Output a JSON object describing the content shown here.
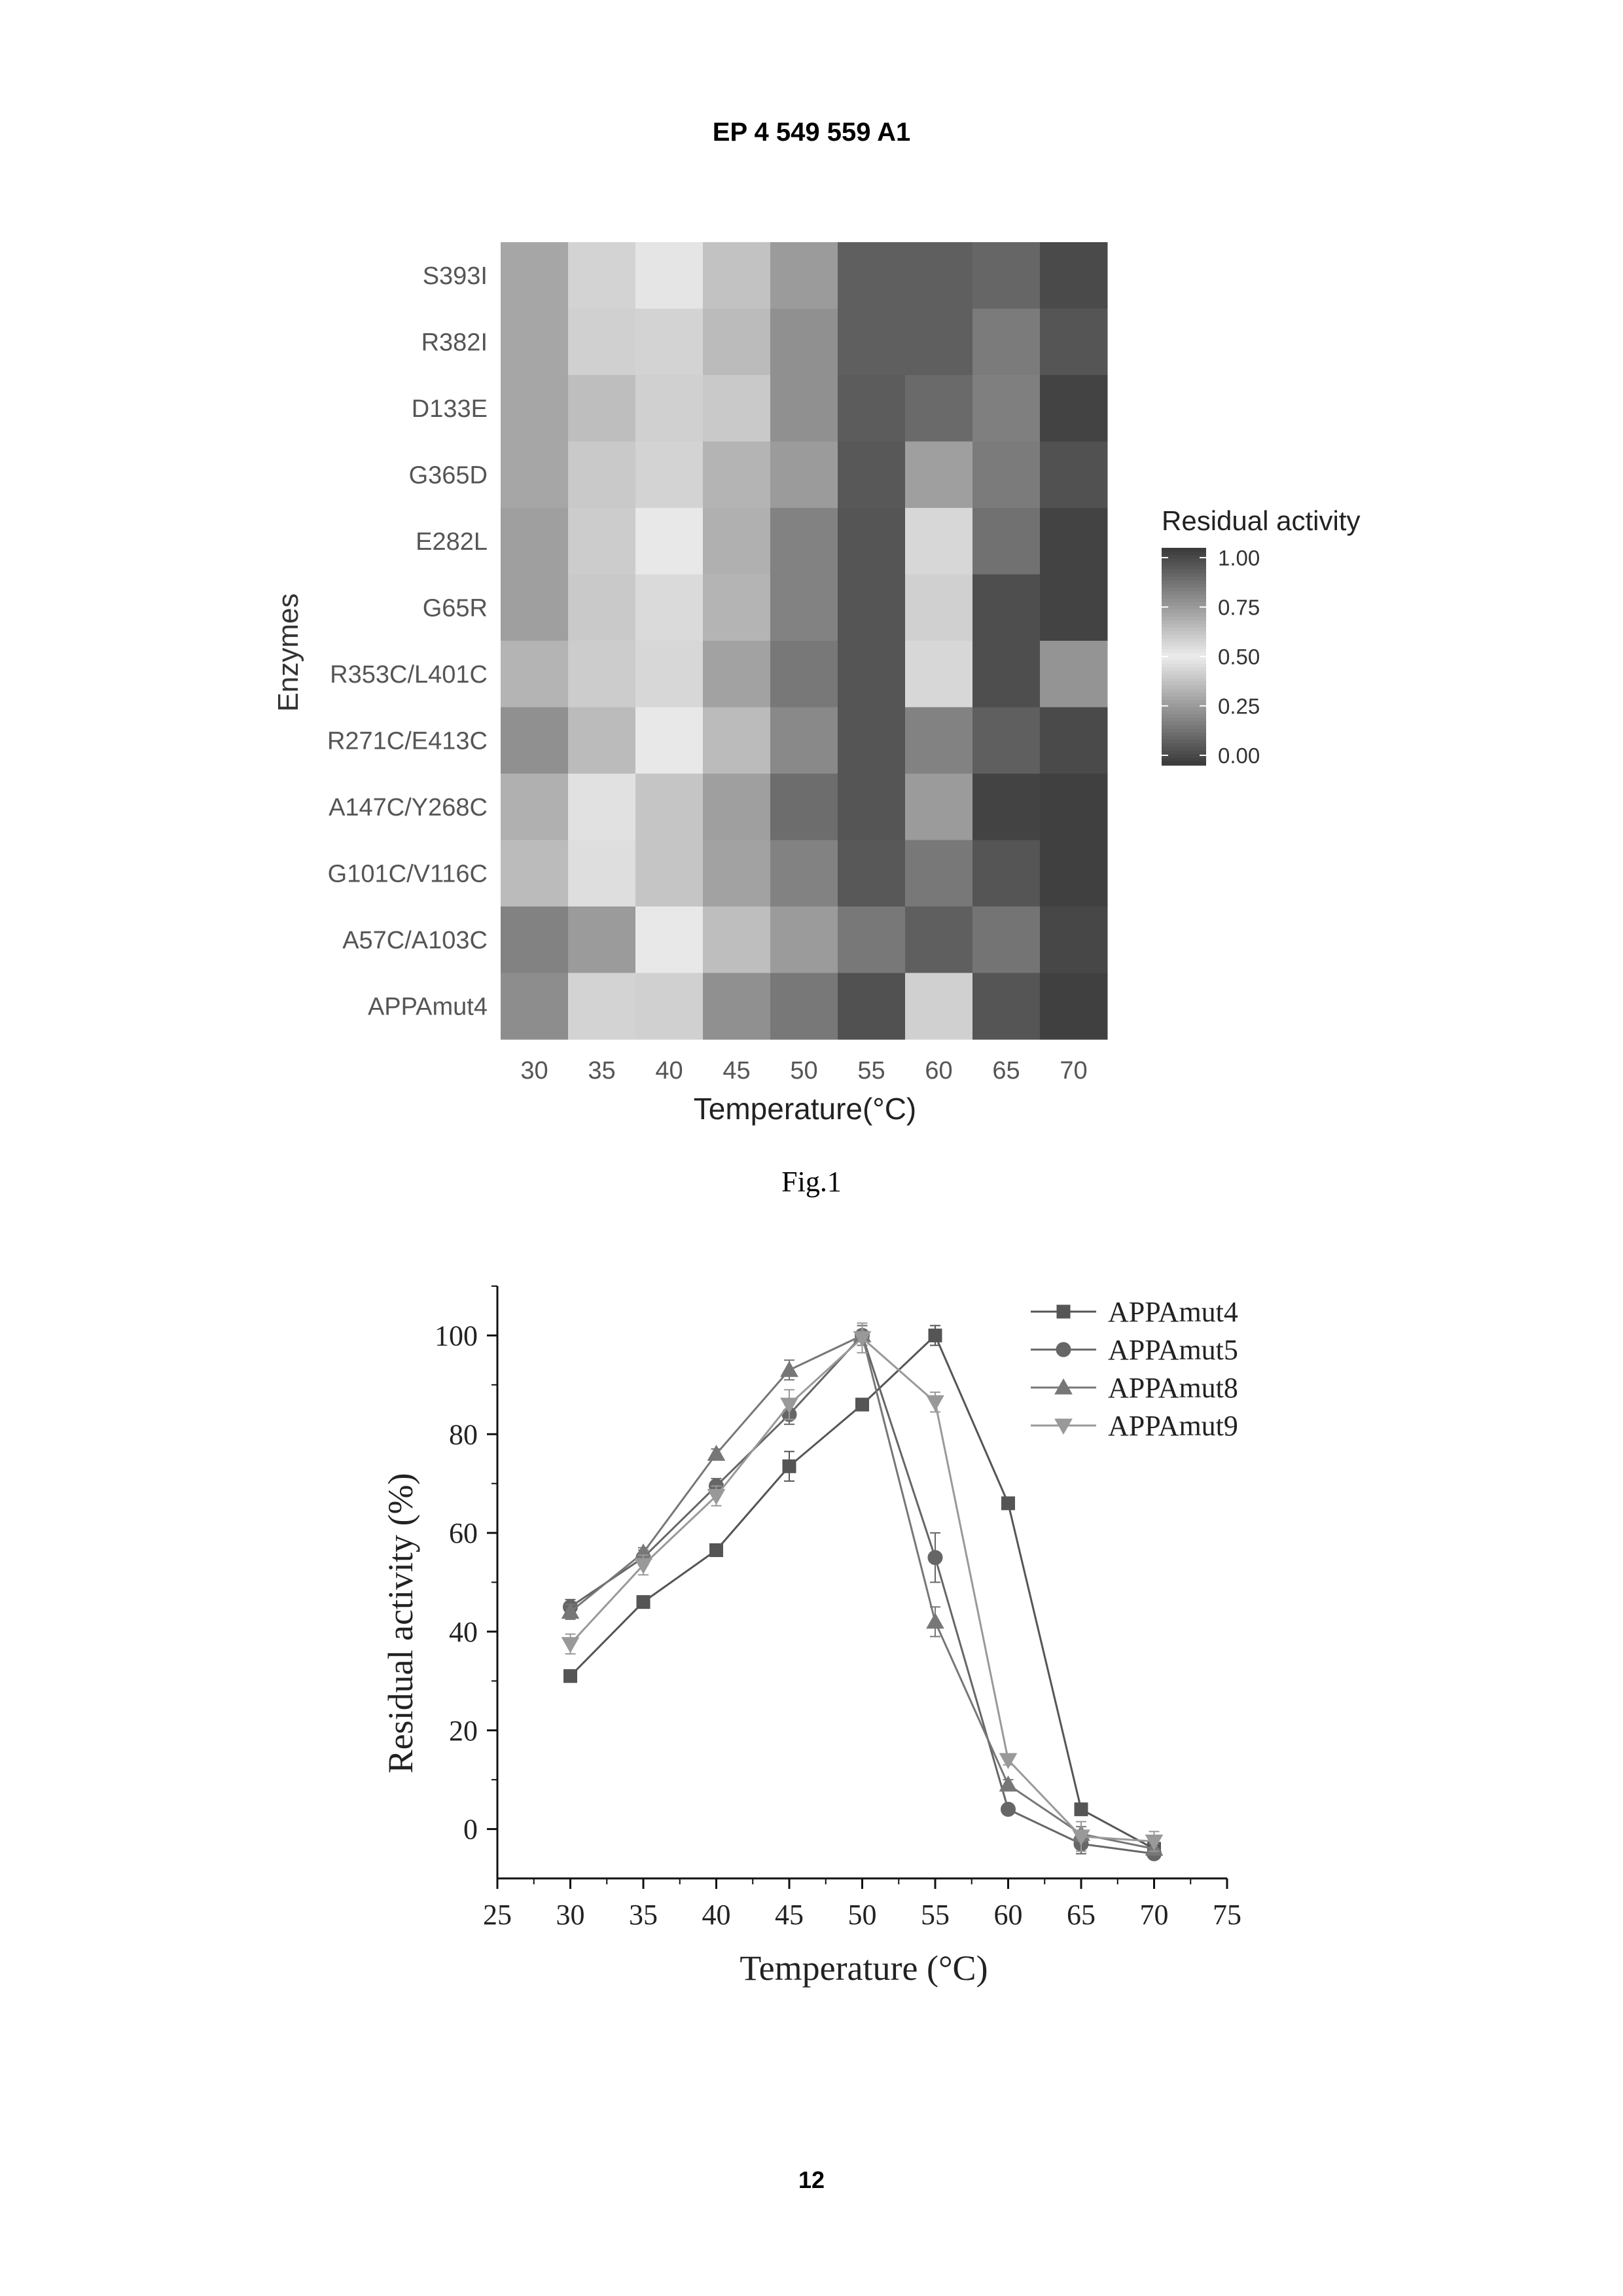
{
  "header": {
    "text": "EP 4 549 559 A1"
  },
  "page_number": "12",
  "figures": {
    "fig1": {
      "caption": "Fig.1"
    }
  },
  "chart_data": [
    {
      "type": "heatmap",
      "xlabel": "Temperature(°C)",
      "ylabel": "Enzymes",
      "legend_title": "Residual activity",
      "colorbar_ticks": [
        "1.00",
        "0.75",
        "0.50",
        "0.25",
        "0.00"
      ],
      "colorbar_placement": "right",
      "color_scale": "diverging grey: 0.00 and 1.00 dark, 0.50 light",
      "x": [
        "30",
        "35",
        "40",
        "45",
        "50",
        "55",
        "60",
        "65",
        "70"
      ],
      "y": [
        "S393I",
        "R382I",
        "D133E",
        "G365D",
        "E282L",
        "G65R",
        "R353C/L401C",
        "R271C/E413C",
        "A147C/Y268C",
        "G101C/V116C",
        "A57C/A103C",
        "APPAmut4"
      ],
      "values": [
        [
          0.7,
          0.57,
          0.48,
          0.62,
          0.73,
          0.9,
          0.9,
          0.88,
          0.96
        ],
        [
          0.7,
          0.58,
          0.57,
          0.64,
          0.76,
          0.9,
          0.9,
          0.82,
          0.93
        ],
        [
          0.7,
          0.63,
          0.58,
          0.6,
          0.76,
          0.91,
          0.87,
          0.81,
          0.98
        ],
        [
          0.7,
          0.6,
          0.57,
          0.66,
          0.73,
          0.92,
          0.72,
          0.82,
          0.94
        ],
        [
          0.72,
          0.59,
          0.49,
          0.67,
          0.8,
          0.93,
          0.56,
          0.85,
          0.98
        ],
        [
          0.72,
          0.6,
          0.55,
          0.66,
          0.8,
          0.93,
          0.58,
          0.95,
          0.98
        ],
        [
          0.66,
          0.59,
          0.56,
          0.71,
          0.83,
          0.93,
          0.56,
          0.95,
          0.75
        ],
        [
          0.76,
          0.64,
          0.51,
          0.64,
          0.78,
          0.93,
          0.8,
          0.9,
          0.96
        ],
        [
          0.67,
          0.53,
          0.61,
          0.72,
          0.86,
          0.93,
          0.73,
          0.98,
          0.99
        ],
        [
          0.64,
          0.54,
          0.61,
          0.71,
          0.8,
          0.92,
          0.83,
          0.93,
          0.99
        ],
        [
          0.8,
          0.73,
          0.51,
          0.63,
          0.73,
          0.83,
          0.9,
          0.84,
          0.97
        ],
        [
          0.77,
          0.57,
          0.58,
          0.76,
          0.83,
          0.94,
          0.58,
          0.93,
          0.99
        ]
      ]
    },
    {
      "type": "line",
      "xlabel": "Temperature (°C)",
      "ylabel": "Residual activity (%)",
      "xlim": [
        25,
        75
      ],
      "ylim": [
        -10,
        110
      ],
      "xticks": [
        25,
        30,
        35,
        40,
        45,
        50,
        55,
        60,
        65,
        70,
        75
      ],
      "yticks": [
        0,
        20,
        40,
        60,
        80,
        100
      ],
      "legend_placement": "top-right",
      "x": [
        30,
        35,
        40,
        45,
        50,
        55,
        60,
        65,
        70
      ],
      "series": [
        {
          "name": "APPAmut4",
          "marker": "square",
          "color": "#555555",
          "values": [
            31,
            46,
            56.5,
            73.5,
            86,
            100,
            66,
            4,
            -4
          ],
          "errors": [
            1,
            1,
            1,
            3,
            1,
            2,
            1,
            1,
            1
          ]
        },
        {
          "name": "APPAmut5",
          "marker": "circle",
          "color": "#666666",
          "values": [
            45,
            55,
            69.5,
            84,
            100,
            55,
            4,
            -3,
            -5
          ],
          "errors": [
            1.5,
            1.5,
            1.5,
            2,
            2,
            5,
            1,
            2,
            1
          ]
        },
        {
          "name": "APPAmut8",
          "marker": "triangle-up",
          "color": "#777777",
          "values": [
            44,
            56,
            76,
            93,
            100,
            42,
            9,
            -1,
            -4
          ],
          "errors": [
            1.5,
            1,
            1,
            2,
            2,
            3,
            1,
            1.5,
            1
          ]
        },
        {
          "name": "APPAmut9",
          "marker": "triangle-down",
          "color": "#999999",
          "values": [
            37.5,
            53.5,
            67.5,
            86,
            99.5,
            86.5,
            14,
            -1.5,
            -2.5
          ],
          "errors": [
            2,
            2,
            2,
            3,
            3,
            2,
            1,
            3,
            2
          ]
        }
      ]
    }
  ]
}
